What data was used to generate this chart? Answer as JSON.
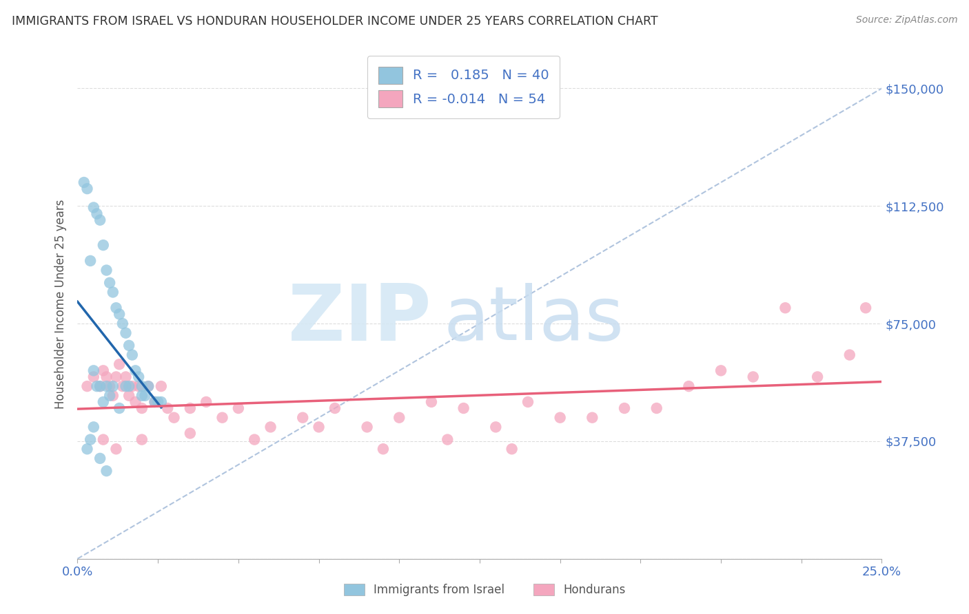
{
  "title": "IMMIGRANTS FROM ISRAEL VS HONDURAN HOUSEHOLDER INCOME UNDER 25 YEARS CORRELATION CHART",
  "source": "Source: ZipAtlas.com",
  "ylabel": "Householder Income Under 25 years",
  "x_min": 0.0,
  "x_max": 0.25,
  "y_min": 0,
  "y_max": 162500,
  "x_ticks": [
    0.0,
    0.025,
    0.05,
    0.075,
    0.1,
    0.125,
    0.15,
    0.175,
    0.2,
    0.225,
    0.25
  ],
  "x_tick_labels_show": [
    "0.0%",
    "",
    "",
    "",
    "",
    "",
    "",
    "",
    "",
    "",
    "25.0%"
  ],
  "y_ticks": [
    0,
    37500,
    75000,
    112500,
    150000
  ],
  "y_tick_right_labels": [
    "",
    "$37,500",
    "$75,000",
    "$112,500",
    "$150,000"
  ],
  "legend_israel_r": "0.185",
  "legend_israel_n": "40",
  "legend_honduran_r": "-0.014",
  "legend_honduran_n": "54",
  "israel_color": "#92c5de",
  "honduran_color": "#f4a6be",
  "israel_line_color": "#2166ac",
  "honduran_line_color": "#e8607a",
  "gray_dash_color": "#b0c4de",
  "israel_scatter_x": [
    0.002,
    0.003,
    0.004,
    0.005,
    0.005,
    0.006,
    0.006,
    0.007,
    0.007,
    0.008,
    0.008,
    0.009,
    0.009,
    0.01,
    0.01,
    0.011,
    0.012,
    0.013,
    0.014,
    0.015,
    0.015,
    0.016,
    0.017,
    0.018,
    0.019,
    0.02,
    0.021,
    0.022,
    0.024,
    0.026,
    0.003,
    0.004,
    0.005,
    0.007,
    0.009,
    0.011,
    0.013,
    0.016,
    0.02,
    0.025
  ],
  "israel_scatter_y": [
    120000,
    118000,
    95000,
    112000,
    60000,
    110000,
    55000,
    108000,
    55000,
    100000,
    50000,
    92000,
    55000,
    88000,
    52000,
    85000,
    80000,
    78000,
    75000,
    72000,
    55000,
    68000,
    65000,
    60000,
    58000,
    55000,
    52000,
    55000,
    50000,
    50000,
    35000,
    38000,
    42000,
    32000,
    28000,
    55000,
    48000,
    55000,
    52000,
    50000
  ],
  "honduran_scatter_x": [
    0.003,
    0.005,
    0.007,
    0.008,
    0.009,
    0.01,
    0.011,
    0.012,
    0.013,
    0.014,
    0.015,
    0.016,
    0.017,
    0.018,
    0.019,
    0.02,
    0.022,
    0.024,
    0.026,
    0.028,
    0.03,
    0.035,
    0.04,
    0.045,
    0.05,
    0.06,
    0.07,
    0.08,
    0.09,
    0.1,
    0.11,
    0.12,
    0.13,
    0.14,
    0.15,
    0.16,
    0.17,
    0.18,
    0.19,
    0.2,
    0.21,
    0.22,
    0.23,
    0.24,
    0.245,
    0.008,
    0.012,
    0.02,
    0.035,
    0.055,
    0.075,
    0.095,
    0.115,
    0.135
  ],
  "honduran_scatter_y": [
    55000,
    58000,
    55000,
    60000,
    58000,
    55000,
    52000,
    58000,
    62000,
    55000,
    58000,
    52000,
    55000,
    50000,
    55000,
    48000,
    55000,
    50000,
    55000,
    48000,
    45000,
    48000,
    50000,
    45000,
    48000,
    42000,
    45000,
    48000,
    42000,
    45000,
    50000,
    48000,
    42000,
    50000,
    45000,
    45000,
    48000,
    48000,
    55000,
    60000,
    58000,
    80000,
    58000,
    65000,
    80000,
    38000,
    35000,
    38000,
    40000,
    38000,
    42000,
    35000,
    38000,
    35000
  ]
}
